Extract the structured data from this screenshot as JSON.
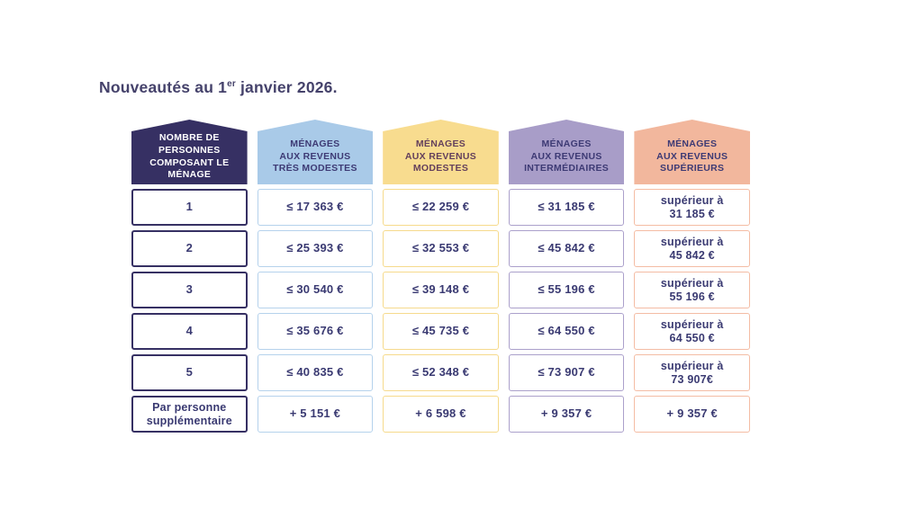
{
  "title": {
    "prefix": "Nouveautés au 1",
    "superscript": "er",
    "suffix": " janvier 2026.",
    "color": "#45426B"
  },
  "table": {
    "text_color": "#3A3A72",
    "columns": [
      {
        "key": "household-size",
        "header": "NOMBRE DE\nPERSONNES\nCOMPOSANT LE\nMÉNAGE",
        "header_bg": "#363063",
        "header_text_color": "#FFFFFF",
        "cell_border": "#363063"
      },
      {
        "key": "revenus-tres-modestes",
        "header": "MÉNAGES\nAUX REVENUS\nTRÈS MODESTES",
        "header_bg": "#A9CAE8",
        "header_text_color": "#3D3A74",
        "cell_border": "#B5D2EC"
      },
      {
        "key": "revenus-modestes",
        "header": "MÉNAGES\nAUX REVENUS\nMODESTES",
        "header_bg": "#F8DC8F",
        "header_text_color": "#64405C",
        "cell_border": "#F6DA8C"
      },
      {
        "key": "revenus-intermediaires",
        "header": "MÉNAGES\nAUX REVENUS\nINTERMÉDIAIRES",
        "header_bg": "#A89DC8",
        "header_text_color": "#3D3A74",
        "cell_border": "#ABA0CB"
      },
      {
        "key": "revenus-superieurs",
        "header": "MÉNAGES\nAUX REVENUS\nSUPÉRIEURS",
        "header_bg": "#F2B79D",
        "header_text_color": "#3D3A74",
        "cell_border": "#F4BCA4"
      }
    ],
    "rows": [
      {
        "cells": [
          "1",
          "≤ 17 363 €",
          "≤ 22 259 €",
          "≤ 31 185 €",
          "supérieur à\n31 185 €"
        ]
      },
      {
        "cells": [
          "2",
          "≤ 25 393 €",
          "≤ 32 553 €",
          "≤ 45 842 €",
          "supérieur à\n45 842 €"
        ]
      },
      {
        "cells": [
          "3",
          "≤ 30 540 €",
          "≤ 39 148 €",
          "≤ 55 196 €",
          "supérieur à\n55 196 €"
        ]
      },
      {
        "cells": [
          "4",
          "≤ 35 676 €",
          "≤ 45 735 €",
          "≤ 64 550 €",
          "supérieur à\n64 550 €"
        ]
      },
      {
        "cells": [
          "5",
          "≤ 40 835 €",
          "≤ 52 348 €",
          "≤ 73 907 €",
          "supérieur à\n73 907€"
        ]
      },
      {
        "cells": [
          "Par personne\nsupplémentaire",
          "+ 5 151 €",
          "+ 6 598 €",
          "+ 9 357 €",
          "+ 9 357 €"
        ]
      }
    ]
  }
}
